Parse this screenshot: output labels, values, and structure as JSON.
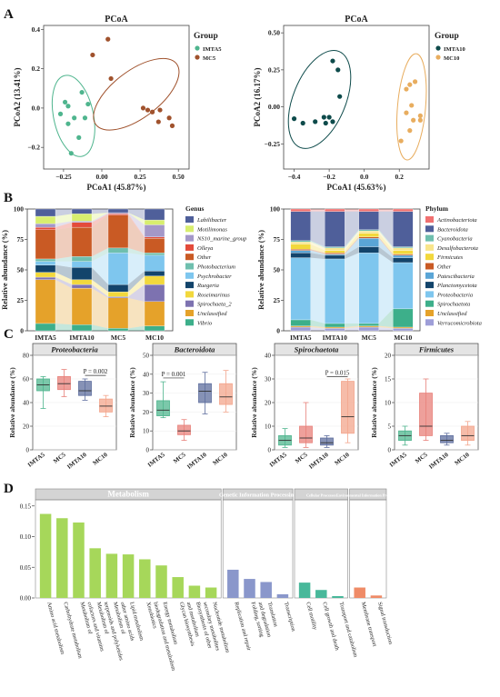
{
  "panel_labels": [
    "A",
    "B",
    "C",
    "D"
  ],
  "chart_data": [
    {
      "id": "A1",
      "type": "scatter",
      "title": "PCoA",
      "xlabel": "PCoA1 (45.87%)",
      "ylabel": "PCoA2 (13.41%)",
      "xlim": [
        -0.38,
        0.57
      ],
      "ylim": [
        -0.31,
        0.42
      ],
      "xticks": [
        -0.25,
        0,
        0.25,
        0.5
      ],
      "xtick_labels": [
        "−0.25",
        "0.00",
        "0.25",
        "0.50"
      ],
      "yticks": [
        -0.2,
        0,
        0.2,
        0.4
      ],
      "ytick_labels": [
        "−0.2",
        "0.0",
        "0.2",
        "0.4"
      ],
      "legend_title": "Group",
      "series": [
        {
          "name": "IMTA5",
          "color": "#4FB58E",
          "x": [
            -0.24,
            -0.22,
            -0.13,
            -0.09,
            -0.27,
            -0.18,
            -0.11,
            -0.22,
            -0.15,
            -0.2
          ],
          "y": [
            0.03,
            0.01,
            0.08,
            0.02,
            -0.03,
            -0.05,
            -0.05,
            -0.08,
            -0.15,
            -0.23
          ],
          "ellipse": {
            "cx": -0.185,
            "cy": -0.04,
            "rx": 0.13,
            "ry": 0.21,
            "angle": -12
          }
        },
        {
          "name": "MC5",
          "color": "#A0522D",
          "x": [
            0.04,
            -0.06,
            0.06,
            0.27,
            0.3,
            0.33,
            0.38,
            0.44,
            0.46,
            0.37
          ],
          "y": [
            0.35,
            0.27,
            0.15,
            0.0,
            -0.01,
            -0.02,
            -0.01,
            -0.05,
            -0.09,
            -0.07
          ],
          "ellipse": {
            "cx": 0.225,
            "cy": 0.07,
            "rx": 0.33,
            "ry": 0.12,
            "angle": -37
          }
        }
      ]
    },
    {
      "id": "A2",
      "type": "scatter",
      "title": "PCoA",
      "xlabel": "PCoA1 (45.63%)",
      "ylabel": "PCoA2 (16.17%)",
      "xlim": [
        -0.46,
        0.37
      ],
      "ylim": [
        -0.42,
        0.55
      ],
      "xticks": [
        -0.4,
        -0.2,
        0,
        0.2
      ],
      "xtick_labels": [
        "−0.4",
        "−0.2",
        "0.0",
        "0.2"
      ],
      "yticks": [
        -0.25,
        0,
        0.25,
        0.5
      ],
      "ytick_labels": [
        "−0.25",
        "0.00",
        "0.25",
        "0.50"
      ],
      "legend_title": "Group",
      "series": [
        {
          "name": "IMTA10",
          "color": "#0E4B4B",
          "x": [
            -0.18,
            -0.15,
            -0.14,
            -0.23,
            -0.2,
            -0.18,
            -0.22,
            -0.28,
            -0.4,
            -0.35
          ],
          "y": [
            0.31,
            0.25,
            0.07,
            -0.07,
            -0.07,
            -0.1,
            -0.11,
            -0.1,
            -0.08,
            -0.11
          ],
          "ellipse": {
            "cx": -0.255,
            "cy": 0.05,
            "rx": 0.15,
            "ry": 0.35,
            "angle": 22
          }
        },
        {
          "name": "MC10",
          "color": "#E8AD5F",
          "x": [
            0.29,
            0.26,
            0.24,
            0.27,
            0.24,
            0.32,
            0.28,
            0.32,
            0.26,
            0.21
          ],
          "y": [
            0.17,
            0.15,
            0.12,
            0.01,
            -0.04,
            -0.06,
            -0.09,
            -0.09,
            -0.16,
            -0.23
          ],
          "ellipse": {
            "cx": 0.27,
            "cy": 0.0,
            "rx": 0.08,
            "ry": 0.36,
            "angle": 5
          }
        }
      ]
    },
    {
      "id": "B1",
      "type": "bar",
      "stacked": true,
      "ylabel": "Relative abundance (%)",
      "ylim": [
        0,
        100
      ],
      "yticks": [
        0,
        25,
        50,
        75,
        100
      ],
      "categories": [
        "IMTA5",
        "IMTA10",
        "MC5",
        "MC10"
      ],
      "legend_title": "Genus",
      "series": [
        {
          "name": "Vibrio",
          "color": "#3DAF8A",
          "values": [
            6,
            5,
            2,
            4
          ]
        },
        {
          "name": "Unclassified",
          "color": "#E5A22A",
          "values": [
            36,
            30,
            25,
            20
          ]
        },
        {
          "name": "Spirochaeta_2",
          "color": "#7D72B0",
          "values": [
            2,
            3,
            1,
            14
          ]
        },
        {
          "name": "Roseimarinus",
          "color": "#F2D83C",
          "values": [
            4,
            4,
            4,
            7
          ]
        },
        {
          "name": "Ruegeria",
          "color": "#13446B",
          "values": [
            6,
            10,
            6,
            4
          ]
        },
        {
          "name": "Psychrobacter",
          "color": "#7EC6EE",
          "values": [
            3,
            5,
            26,
            13
          ]
        },
        {
          "name": "Photobacterium",
          "color": "#6FBFAE",
          "values": [
            2,
            4,
            4,
            2
          ]
        },
        {
          "name": "Other",
          "color": "#C95A24",
          "values": [
            24,
            24,
            27,
            12
          ]
        },
        {
          "name": "Olleya",
          "color": "#E34B3B",
          "values": [
            2,
            4,
            1,
            1
          ]
        },
        {
          "name": "NS10_marine_group",
          "color": "#A498C8",
          "values": [
            3,
            1,
            1,
            10
          ]
        },
        {
          "name": "Motilimonas",
          "color": "#D8EE6E",
          "values": [
            6,
            6,
            0,
            4
          ]
        },
        {
          "name": "Labilibacter",
          "color": "#4F5F9A",
          "values": [
            6,
            4,
            3,
            9
          ]
        }
      ]
    },
    {
      "id": "B2",
      "type": "bar",
      "stacked": true,
      "ylabel": "Relative abundance (%)",
      "ylim": [
        0,
        100
      ],
      "yticks": [
        0,
        25,
        50,
        75,
        100
      ],
      "categories": [
        "IMTA5",
        "IMTA10",
        "MC5",
        "MC10"
      ],
      "legend_title": "Phylum",
      "series": [
        {
          "name": "Verrucomicrobiota",
          "color": "#9E9ED8",
          "values": [
            3,
            2,
            3,
            2
          ]
        },
        {
          "name": "Unclassified",
          "color": "#E5A22A",
          "values": [
            1,
            1,
            1,
            1
          ]
        },
        {
          "name": "Spirochaetota",
          "color": "#3DAF8A",
          "values": [
            5,
            3,
            2,
            15
          ]
        },
        {
          "name": "Proteobacteria",
          "color": "#7EC6EE",
          "values": [
            51,
            53,
            58,
            38
          ]
        },
        {
          "name": "Planctomycetota",
          "color": "#13446B",
          "values": [
            4,
            3,
            5,
            4
          ]
        },
        {
          "name": "Patescibacteria",
          "color": "#5AA5D6",
          "values": [
            2,
            1,
            7,
            2
          ]
        },
        {
          "name": "Other",
          "color": "#C95A24",
          "values": [
            1,
            1,
            1,
            1
          ]
        },
        {
          "name": "Firmicutes",
          "color": "#F2D83C",
          "values": [
            4,
            2,
            3,
            3
          ]
        },
        {
          "name": "Desulfobacterota",
          "color": "#F8E58C",
          "values": [
            2,
            2,
            2,
            2
          ]
        },
        {
          "name": "Cyanobacteria",
          "color": "#6FBFAE",
          "values": [
            1,
            1,
            1,
            1
          ]
        },
        {
          "name": "Bacteroidota",
          "color": "#4F5F9A",
          "values": [
            24,
            29,
            15,
            29
          ]
        },
        {
          "name": "Actinobacteriota",
          "color": "#F07070",
          "values": [
            2,
            2,
            2,
            2
          ]
        }
      ]
    },
    {
      "id": "C1",
      "type": "box",
      "title": "Proteobacteria",
      "ylabel": "Relative abundance (%)",
      "ylim": [
        0,
        80
      ],
      "yticks": [
        0,
        20,
        40,
        60,
        80
      ],
      "categories": [
        "IMTA5",
        "MC5",
        "IMTA10",
        "MC10"
      ],
      "colors": [
        "#4FB58E",
        "#E8807A",
        "#5E6E9E",
        "#F3A58C"
      ],
      "boxes": [
        {
          "min": 35,
          "q1": 50,
          "median": 55,
          "q3": 60,
          "max": 62
        },
        {
          "min": 45,
          "q1": 51,
          "median": 56,
          "q3": 62,
          "max": 68
        },
        {
          "min": 42,
          "q1": 46,
          "median": 50,
          "q3": 58,
          "max": 60
        },
        {
          "min": 28,
          "q1": 32,
          "median": 37,
          "q3": 43,
          "max": 46
        }
      ],
      "significance": {
        "pair": [
          2,
          3
        ],
        "label": "P = 0.002",
        "y": 63
      }
    },
    {
      "id": "C2",
      "type": "box",
      "title": "Bacteroidota",
      "ylabel": "Relative abundance (%)",
      "ylim": [
        0,
        50
      ],
      "yticks": [
        0,
        10,
        20,
        30,
        40,
        50
      ],
      "categories": [
        "IMTA5",
        "MC5",
        "IMTA10",
        "MC10"
      ],
      "colors": [
        "#4FB58E",
        "#E8807A",
        "#5E6E9E",
        "#F3A58C"
      ],
      "boxes": [
        {
          "min": 17,
          "q1": 18,
          "median": 21,
          "q3": 26,
          "max": 36
        },
        {
          "min": 5,
          "q1": 8,
          "median": 10,
          "q3": 13,
          "max": 16
        },
        {
          "min": 19,
          "q1": 25,
          "median": 31,
          "q3": 35,
          "max": 41
        },
        {
          "min": 20,
          "q1": 24,
          "median": 28,
          "q3": 35,
          "max": 42
        }
      ],
      "significance": {
        "pair": [
          0,
          1
        ],
        "label": "P = 0.001",
        "y": 38
      }
    },
    {
      "id": "C3",
      "type": "box",
      "title": "Spirochaetota",
      "ylabel": "Relative abundance (%)",
      "ylim": [
        0,
        40
      ],
      "yticks": [
        0,
        10,
        20,
        30,
        40
      ],
      "categories": [
        "IMTA5",
        "MC5",
        "IMTA10",
        "MC10"
      ],
      "colors": [
        "#4FB58E",
        "#E8807A",
        "#5E6E9E",
        "#F3A58C"
      ],
      "boxes": [
        {
          "min": 1,
          "q1": 2,
          "median": 4,
          "q3": 6,
          "max": 9
        },
        {
          "min": 1,
          "q1": 3,
          "median": 5,
          "q3": 10,
          "max": 20
        },
        {
          "min": 1,
          "q1": 2,
          "median": 3,
          "q3": 5,
          "max": 6
        },
        {
          "min": 3,
          "q1": 7,
          "median": 14,
          "q3": 29,
          "max": 30
        }
      ],
      "significance": {
        "pair": [
          2,
          3
        ],
        "label": "P = 0.015",
        "y": 31
      }
    },
    {
      "id": "C4",
      "type": "box",
      "title": "Firmicutes",
      "ylabel": "Relative abundance (%)",
      "ylim": [
        0,
        20
      ],
      "yticks": [
        0,
        5,
        10,
        15,
        20
      ],
      "categories": [
        "IMTA5",
        "MC5",
        "IMTA10",
        "MC10"
      ],
      "colors": [
        "#4FB58E",
        "#E8807A",
        "#5E6E9E",
        "#F3A58C"
      ],
      "boxes": [
        {
          "min": 1,
          "q1": 2,
          "median": 3,
          "q3": 4,
          "max": 5
        },
        {
          "min": 2,
          "q1": 3,
          "median": 5,
          "q3": 12,
          "max": 15
        },
        {
          "min": 1,
          "q1": 1.5,
          "median": 2,
          "q3": 3,
          "max": 3.5
        },
        {
          "min": 1,
          "q1": 2,
          "median": 3,
          "q3": 5,
          "max": 6
        }
      ]
    },
    {
      "id": "D",
      "type": "bar",
      "ylim": [
        0,
        0.16
      ],
      "yticks": [
        0,
        0.05,
        0.1,
        0.15
      ],
      "ytick_labels": [
        "0.00",
        "0.05",
        "0.10",
        "0.15"
      ],
      "groups": [
        {
          "name": "Metabolism",
          "color": "#A6D75A",
          "categories": [
            "Amino acid metabolism",
            "Carbohydrate metabolism",
            "Metabolism of cofactors and vitamins",
            "Metabolism of terpenoids and polyketides",
            "Metabolism of other amino acids",
            "Lipid metabolism",
            "Xenobiotics biodegradation and metabolism",
            "Energy metabolism",
            "Glycan biosynthesis and metabolism",
            "Biosynthesis of other secondary metabolites",
            "Nucleotide metabolism"
          ],
          "values": [
            0.137,
            0.13,
            0.123,
            0.081,
            0.072,
            0.071,
            0.063,
            0.053,
            0.034,
            0.02,
            0.017
          ]
        },
        {
          "name": "Genetic Information Processing",
          "color": "#8A97CB",
          "categories": [
            "Replication and repair",
            "Folding, sorting and degradation",
            "Translation",
            "Transcription"
          ],
          "values": [
            0.046,
            0.031,
            0.026,
            0.006
          ]
        },
        {
          "name": "Cellular Processes",
          "color": "#48B89A",
          "categories": [
            "Cell motility",
            "Cell growth and death",
            "Transport and catabolism"
          ],
          "values": [
            0.025,
            0.013,
            0.003
          ]
        },
        {
          "name": "Environmental Information Processing",
          "color": "#EF8B67",
          "categories": [
            "Membrane transport",
            "Signal transduction"
          ],
          "values": [
            0.017,
            0.004
          ]
        }
      ]
    }
  ]
}
